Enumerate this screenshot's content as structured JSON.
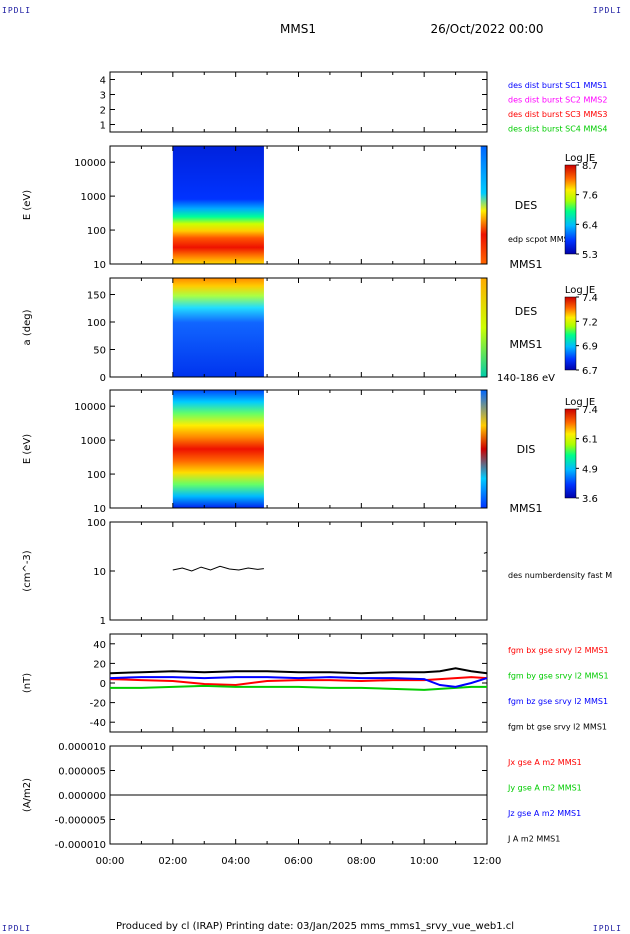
{
  "corners": [
    "IPDLI",
    "IPDLI",
    "IPDLI",
    "IPDLI"
  ],
  "header": {
    "mission": "MMS1",
    "date": "26/Oct/2022 00:00"
  },
  "footer": "Produced by cl (IRAP)   Printing date: 03/Jan/2025   mms_mms1_srvy_vue_web1.cl",
  "time_axis": {
    "ticks": [
      "00:00",
      "02:00",
      "04:00",
      "06:00",
      "08:00",
      "10:00",
      "12:00"
    ]
  },
  "colors": {
    "blue": "#0000ff",
    "magenta": "#ff00ff",
    "red": "#ff0000",
    "green": "#00cc00",
    "black": "#000000"
  },
  "chart_data": [
    {
      "type": "line",
      "panel": "burst",
      "yticks": [
        "4",
        "3",
        "2",
        "1"
      ],
      "ylim": [
        0.5,
        4.5
      ],
      "legend": [
        {
          "text": "des dist burst SC1 MMS1",
          "color": "#0000ff"
        },
        {
          "text": "des dist burst SC2 MMS2",
          "color": "#ff00ff"
        },
        {
          "text": "des dist burst SC3 MMS3",
          "color": "#ff0000"
        },
        {
          "text": "des dist burst SC4 MMS4",
          "color": "#00cc00"
        }
      ]
    },
    {
      "type": "heatmap",
      "panel": "des_energy",
      "ylabel": "E (eV)",
      "scale": "log",
      "yticks": [
        "10000",
        "1000",
        "100",
        "10"
      ],
      "ylim": [
        10,
        30000
      ],
      "data_span_hours": [
        [
          2.0,
          4.9
        ],
        [
          11.8,
          12.0
        ]
      ],
      "label": "DES",
      "sublabel": "MMS1",
      "overlay_label": "edp scpot MMS1",
      "colorbar": {
        "title": "Log JE",
        "ticks": [
          "8.7",
          "7.6",
          "6.4",
          "5.3"
        ]
      }
    },
    {
      "type": "heatmap",
      "panel": "des_pitch",
      "ylabel": "a (deg)",
      "yticks": [
        "150",
        "100",
        "50",
        "0"
      ],
      "ylim": [
        0,
        180
      ],
      "data_span_hours": [
        [
          2.0,
          4.9
        ],
        [
          11.8,
          12.0
        ]
      ],
      "label": "DES",
      "sublabel": "MMS1",
      "energy_range": "140-186 eV",
      "colorbar": {
        "title": "Log JE",
        "ticks": [
          "7.4",
          "7.2",
          "6.9",
          "6.7"
        ]
      }
    },
    {
      "type": "heatmap",
      "panel": "dis_energy",
      "ylabel": "E (eV)",
      "scale": "log",
      "yticks": [
        "10000",
        "1000",
        "100",
        "10"
      ],
      "ylim": [
        10,
        30000
      ],
      "data_span_hours": [
        [
          2.0,
          4.9
        ],
        [
          11.8,
          12.0
        ]
      ],
      "label": "DIS",
      "sublabel": "MMS1",
      "colorbar": {
        "title": "Log JE",
        "ticks": [
          "7.4",
          "6.1",
          "4.9",
          "3.6"
        ]
      }
    },
    {
      "type": "line",
      "panel": "density",
      "ylabel": "(cm^-3)",
      "scale": "log",
      "yticks": [
        "100",
        "10",
        "1"
      ],
      "ylim": [
        1,
        100
      ],
      "series": [
        {
          "name": "des numberdensity fast M",
          "color": "#000000",
          "x": [
            2.0,
            2.3,
            2.6,
            2.9,
            3.2,
            3.5,
            3.8,
            4.1,
            4.4,
            4.7,
            4.9,
            11.9,
            12.0
          ],
          "y": [
            10.5,
            11.5,
            10.0,
            12.0,
            10.5,
            12.5,
            11.0,
            10.5,
            11.5,
            10.8,
            11.2,
            23,
            24
          ]
        }
      ]
    },
    {
      "type": "line",
      "panel": "fgm",
      "ylabel": "(nT)",
      "yticks": [
        "40",
        "20",
        "0",
        "-20",
        "-40"
      ],
      "ylim": [
        -50,
        50
      ],
      "x": [
        0,
        1,
        2,
        3,
        4,
        5,
        6,
        7,
        8,
        9,
        10,
        10.5,
        11,
        11.5,
        12
      ],
      "series": [
        {
          "name": "fgm bx gse srvy l2 MMS1",
          "color": "#ff0000",
          "y": [
            4,
            3,
            2,
            -1,
            -2,
            2,
            3,
            3,
            2,
            3,
            3,
            4,
            5,
            6,
            5
          ]
        },
        {
          "name": "fgm by gse srvy l2 MMS1",
          "color": "#00cc00",
          "y": [
            -5,
            -5,
            -4,
            -3,
            -4,
            -4,
            -4,
            -5,
            -5,
            -6,
            -7,
            -6,
            -5,
            -4,
            -4
          ]
        },
        {
          "name": "fgm bz gse srvy l2 MMS1",
          "color": "#0000ff",
          "y": [
            5,
            6,
            6,
            5,
            6,
            6,
            5,
            6,
            5,
            5,
            4,
            -2,
            -4,
            0,
            5
          ]
        },
        {
          "name": "fgm bt gse srvy l2 MMS1",
          "color": "#000000",
          "y": [
            10,
            11,
            12,
            11,
            12,
            12,
            11,
            11,
            10,
            11,
            11,
            12,
            15,
            12,
            10
          ]
        }
      ]
    },
    {
      "type": "line",
      "panel": "current",
      "ylabel": "(A/m2)",
      "yticks": [
        "0.000010",
        "0.000005",
        "0.000000",
        "-0.000005",
        "-0.000010"
      ],
      "ylim": [
        -1e-05,
        1e-05
      ],
      "x": [
        0,
        12
      ],
      "series": [
        {
          "name": "Jx gse A m2 MMS1",
          "color": "#ff0000",
          "y": [
            0,
            0
          ]
        },
        {
          "name": "Jy gse A m2 MMS1",
          "color": "#00cc00",
          "y": [
            0,
            0
          ]
        },
        {
          "name": "Jz gse A m2 MMS1",
          "color": "#0000ff",
          "y": [
            0,
            0
          ]
        },
        {
          "name": "J A m2 MMS1",
          "color": "#000000",
          "y": [
            0,
            0
          ]
        }
      ]
    }
  ]
}
